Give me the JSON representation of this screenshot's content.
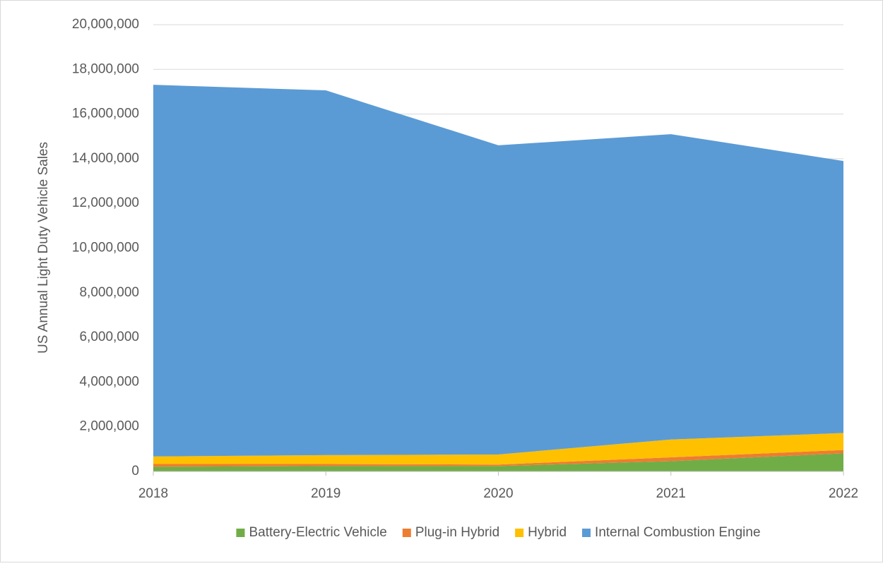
{
  "chart_data": {
    "type": "stacked_area",
    "y_label": "US Annual Light Duty Vehicle Sales",
    "categories": [
      "2018",
      "2019",
      "2020",
      "2021",
      "2022"
    ],
    "series": [
      {
        "name": "Battery-Electric Vehicle",
        "color": "#70ad47",
        "values": [
          210000,
          240000,
          240000,
          460000,
          810000
        ]
      },
      {
        "name": "Plug-in Hybrid",
        "color": "#ed7d31",
        "values": [
          120000,
          90000,
          70000,
          170000,
          150000
        ]
      },
      {
        "name": "Hybrid",
        "color": "#ffc000",
        "values": [
          340000,
          400000,
          450000,
          800000,
          760000
        ]
      },
      {
        "name": "Internal Combustion Engine",
        "color": "#5b9bd5",
        "values": [
          16640000,
          16330000,
          13840000,
          13670000,
          12180000
        ]
      }
    ],
    "ylim": [
      0,
      20000000
    ],
    "yticks": [
      0,
      {
        "value": 2000000,
        "label": "2,000,000"
      },
      {
        "value": 4000000,
        "label": "4,000,000"
      },
      {
        "value": 6000000,
        "label": "6,000,000"
      },
      {
        "value": 8000000,
        "label": "8,000,000"
      },
      {
        "value": 10000000,
        "label": "10,000,000"
      },
      {
        "value": 12000000,
        "label": "12,000,000"
      },
      {
        "value": 14000000,
        "label": "14,000,000"
      },
      {
        "value": 16000000,
        "label": "16,000,000"
      },
      {
        "value": 18000000,
        "label": "18,000,000"
      },
      {
        "value": 20000000,
        "label": "20,000,000"
      }
    ],
    "grid": true,
    "legend": "bottom"
  }
}
